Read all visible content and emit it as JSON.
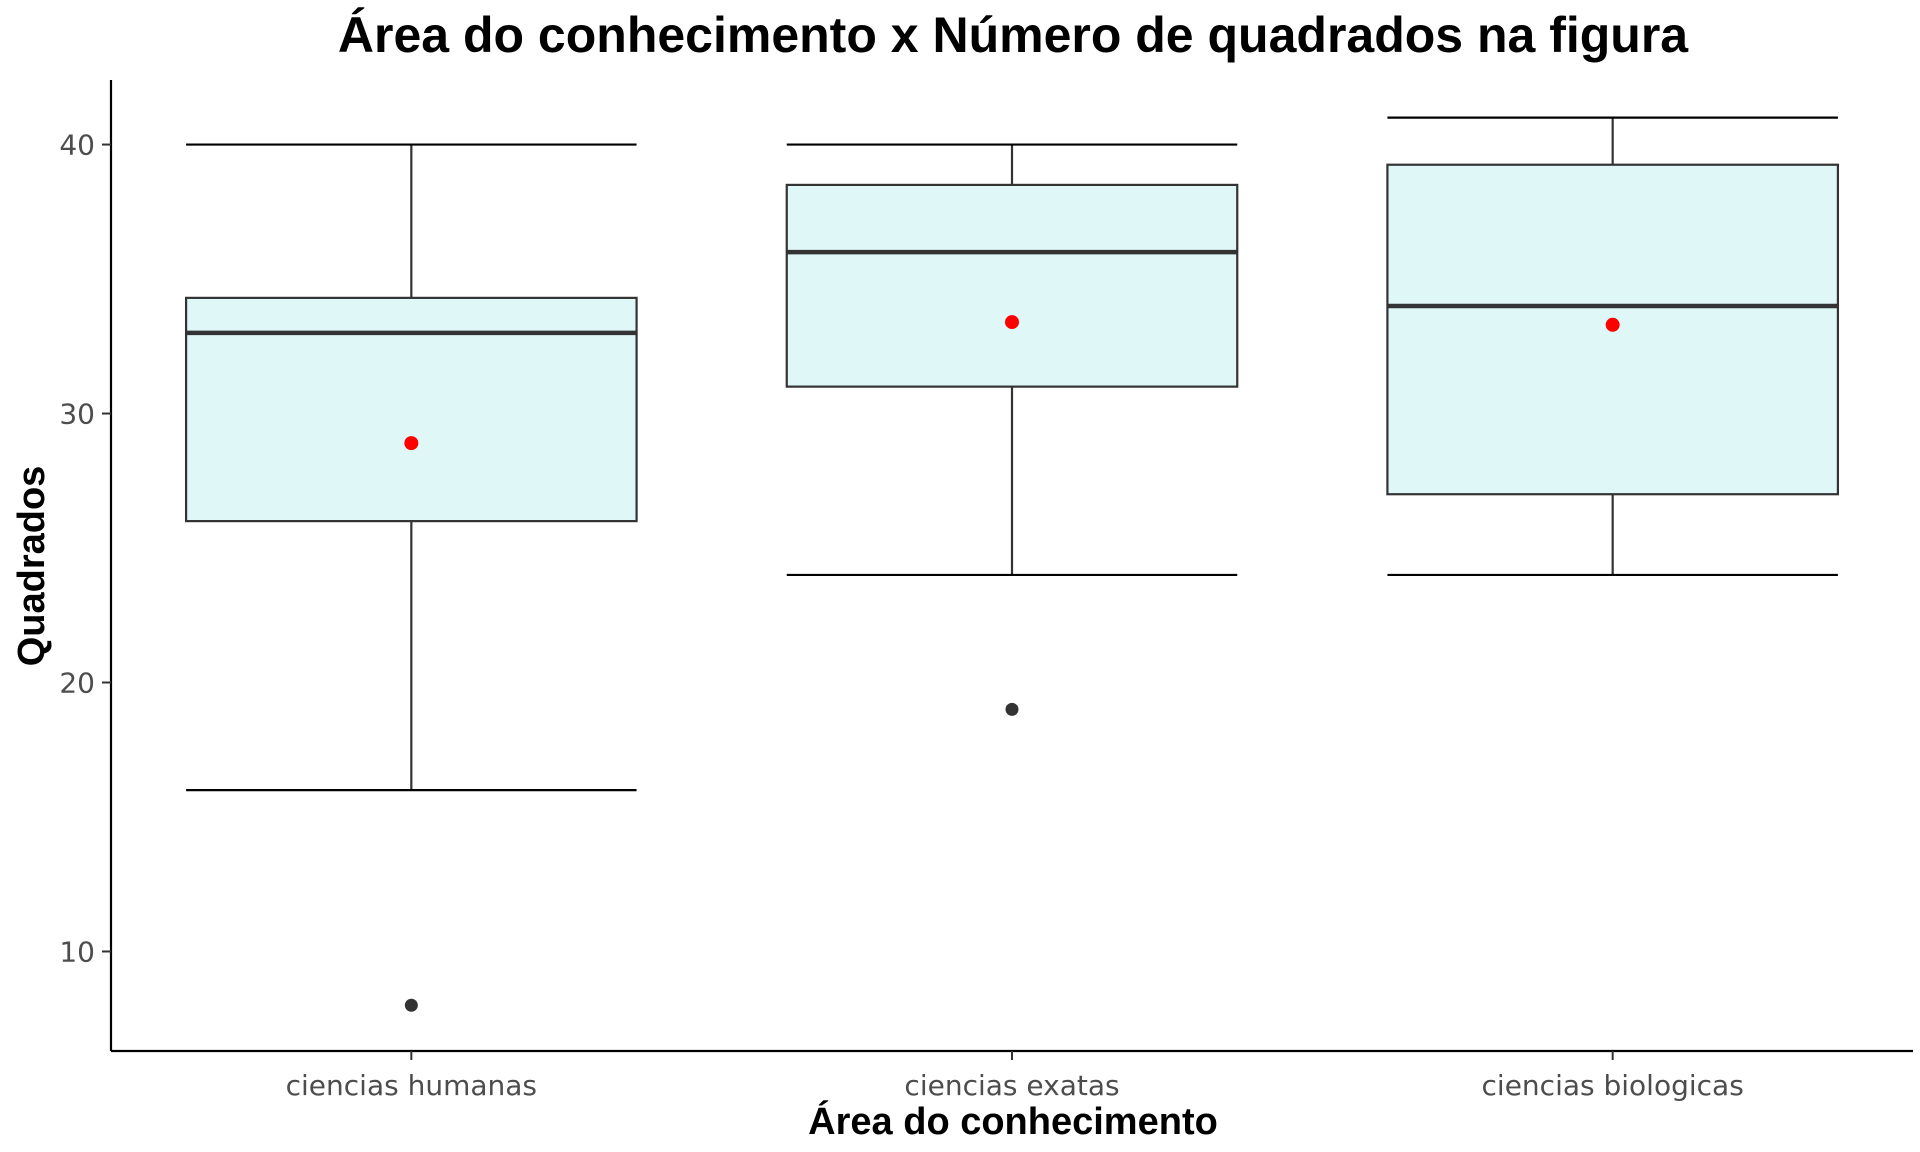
{
  "chart_data": {
    "type": "boxplot",
    "title": "Área do conhecimento x Número de quadrados na figura",
    "xlabel": "Área do conhecimento",
    "ylabel": "Quadrados",
    "ylim": [
      6.3,
      42.4
    ],
    "yticks": [
      10,
      20,
      30,
      40
    ],
    "grid": false,
    "box_fill": "#e0f7f8",
    "box_stroke": "#333333",
    "mean_color": "#ff0000",
    "outlier_color": "#333333",
    "categories": [
      "ciencias humanas",
      "ciencias exatas",
      "ciencias biologicas"
    ],
    "boxes": [
      {
        "category": "ciencias humanas",
        "whisker_low": 16,
        "q1": 26,
        "median": 33,
        "q3": 34.3,
        "whisker_high": 40,
        "mean": 28.9,
        "outliers": [
          8
        ]
      },
      {
        "category": "ciencias exatas",
        "whisker_low": 24,
        "q1": 31,
        "median": 36,
        "q3": 38.5,
        "whisker_high": 40,
        "mean": 33.4,
        "outliers": [
          19
        ]
      },
      {
        "category": "ciencias biologicas",
        "whisker_low": 24,
        "q1": 27,
        "median": 34,
        "q3": 39.25,
        "whisker_high": 41,
        "mean": 33.3,
        "outliers": []
      }
    ]
  }
}
